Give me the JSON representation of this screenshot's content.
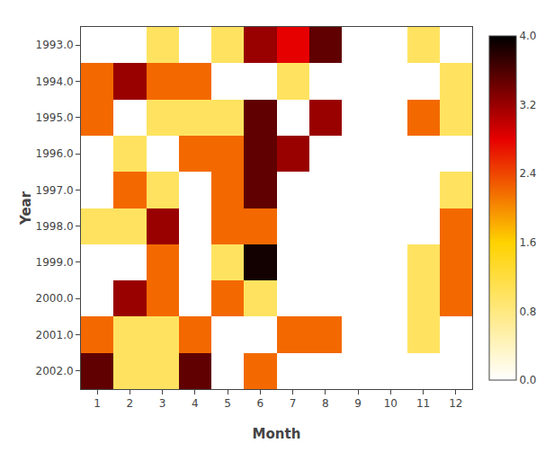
{
  "chart_data": {
    "type": "heatmap",
    "xlabel": "Month",
    "ylabel": "Year",
    "x": [
      1,
      2,
      3,
      4,
      5,
      6,
      7,
      8,
      9,
      10,
      11,
      12
    ],
    "y": [
      1993,
      1994,
      1995,
      1996,
      1997,
      1998,
      1999,
      2000,
      2001,
      2002
    ],
    "values": [
      [
        null,
        null,
        1.0,
        null,
        1.0,
        3.2,
        2.8,
        3.5,
        null,
        null,
        1.0,
        null
      ],
      [
        2.2,
        3.2,
        2.2,
        2.2,
        null,
        null,
        1.0,
        null,
        null,
        null,
        null,
        1.0
      ],
      [
        2.2,
        null,
        1.0,
        1.0,
        1.0,
        3.5,
        null,
        3.2,
        null,
        null,
        2.2,
        1.0
      ],
      [
        null,
        1.0,
        null,
        2.2,
        2.2,
        3.5,
        3.2,
        null,
        null,
        null,
        null,
        null
      ],
      [
        null,
        2.2,
        1.0,
        null,
        2.2,
        3.5,
        null,
        null,
        null,
        null,
        null,
        1.0
      ],
      [
        1.0,
        1.0,
        3.2,
        null,
        2.2,
        2.2,
        null,
        null,
        null,
        null,
        null,
        2.2
      ],
      [
        null,
        null,
        2.2,
        null,
        1.0,
        3.9,
        null,
        null,
        null,
        null,
        1.0,
        2.2
      ],
      [
        null,
        3.2,
        2.2,
        null,
        2.2,
        1.0,
        null,
        null,
        null,
        null,
        1.0,
        2.2
      ],
      [
        2.2,
        1.0,
        1.0,
        2.2,
        null,
        null,
        2.2,
        2.2,
        null,
        null,
        1.0,
        null
      ],
      [
        3.5,
        1.0,
        1.0,
        3.5,
        null,
        2.2,
        null,
        null,
        null,
        null,
        null,
        null
      ]
    ],
    "xlim": [
      0.5,
      12.5
    ],
    "xticks": [
      1,
      2,
      3,
      4,
      5,
      6,
      7,
      8,
      9,
      10,
      11,
      12
    ],
    "ylim": [
      2002.5,
      1992.5
    ],
    "yticks": [
      {
        "value": 1993,
        "label": "1993.0"
      },
      {
        "value": 1994,
        "label": "1994.0"
      },
      {
        "value": 1995,
        "label": "1995.0"
      },
      {
        "value": 1996,
        "label": "1996.0"
      },
      {
        "value": 1997,
        "label": "1997.0"
      },
      {
        "value": 1998,
        "label": "1998.0"
      },
      {
        "value": 1999,
        "label": "1999.0"
      },
      {
        "value": 2000,
        "label": "2000.0"
      },
      {
        "value": 2001,
        "label": "2001.0"
      },
      {
        "value": 2002,
        "label": "2002.0"
      }
    ],
    "color": "hot_r",
    "colorbar_range": [
      0.0,
      4.0
    ],
    "colorbar_ticks": [
      {
        "value": 0.0,
        "label": "0.0"
      },
      {
        "value": 0.8,
        "label": "0.8"
      },
      {
        "value": 1.6,
        "label": "1.6"
      },
      {
        "value": 2.4,
        "label": "2.4"
      },
      {
        "value": 3.2,
        "label": "3.2"
      },
      {
        "value": 4.0,
        "label": "4.0"
      }
    ],
    "grid": false
  }
}
